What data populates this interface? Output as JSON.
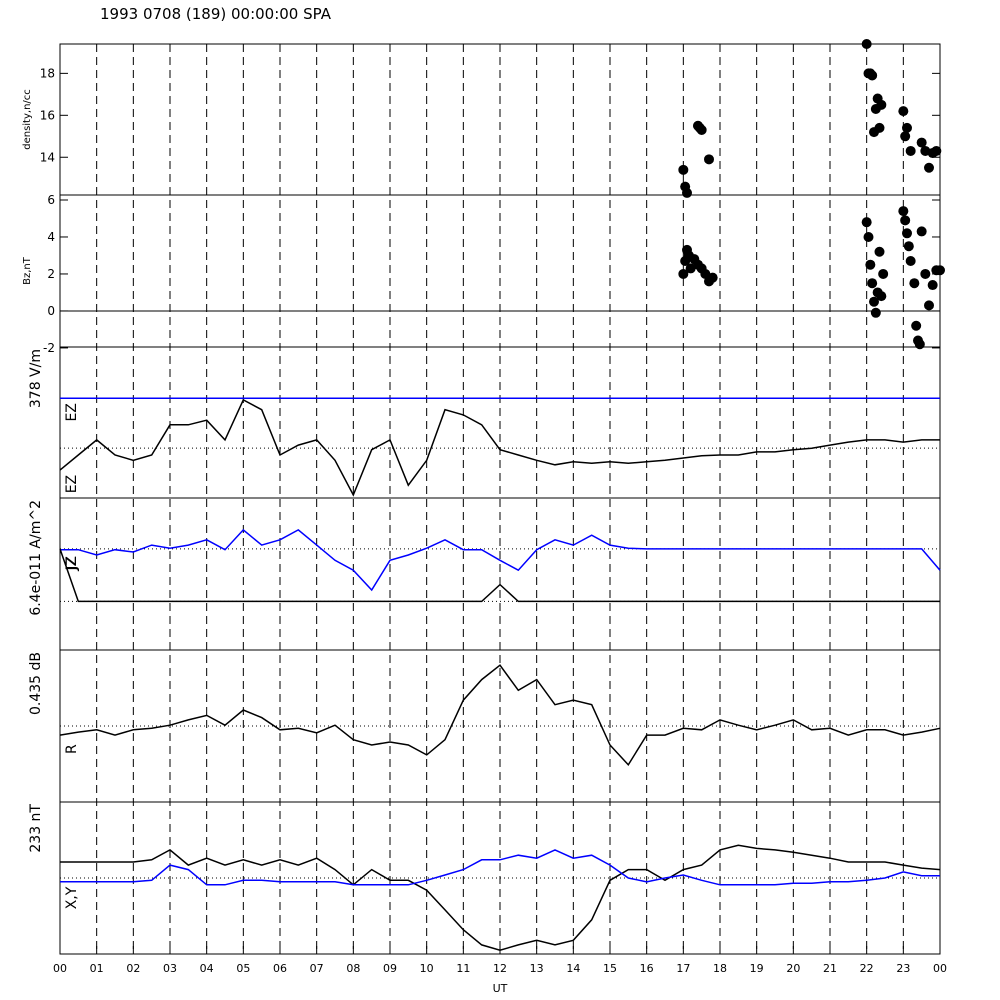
{
  "title": "1993 0708 (189) 00:00:00 SPA",
  "x_axis": {
    "label": "UT",
    "xlim": [
      0,
      24
    ],
    "xticks": [
      {
        "value": 0,
        "label": "00"
      },
      {
        "value": 1,
        "label": "01"
      },
      {
        "value": 2,
        "label": "02"
      },
      {
        "value": 3,
        "label": "03"
      },
      {
        "value": 4,
        "label": "04"
      },
      {
        "value": 5,
        "label": "05"
      },
      {
        "value": 6,
        "label": "06"
      },
      {
        "value": 7,
        "label": "07"
      },
      {
        "value": 8,
        "label": "08"
      },
      {
        "value": 9,
        "label": "09"
      },
      {
        "value": 10,
        "label": "10"
      },
      {
        "value": 11,
        "label": "11"
      },
      {
        "value": 12,
        "label": "12"
      },
      {
        "value": 13,
        "label": "13"
      },
      {
        "value": 14,
        "label": "14"
      },
      {
        "value": 15,
        "label": "15"
      },
      {
        "value": 16,
        "label": "16"
      },
      {
        "value": 17,
        "label": "17"
      },
      {
        "value": 18,
        "label": "18"
      },
      {
        "value": 19,
        "label": "19"
      },
      {
        "value": 20,
        "label": "20"
      },
      {
        "value": 21,
        "label": "21"
      },
      {
        "value": 22,
        "label": "22"
      },
      {
        "value": 23,
        "label": "23"
      },
      {
        "value": 24,
        "label": "00"
      }
    ]
  },
  "chart_data": [
    {
      "type": "scatter",
      "ylabel": "density,n/cc",
      "ylim": [
        12.2,
        19.4
      ],
      "yticks": [
        14,
        16,
        18
      ],
      "series": [
        {
          "color": "#000000",
          "x": [
            17.0,
            17.05,
            17.1,
            17.4,
            17.45,
            17.5,
            17.7,
            22.0,
            22.05,
            22.1,
            22.15,
            22.2,
            22.25,
            22.3,
            22.35,
            22.4,
            23.0,
            23.05,
            23.1,
            23.2,
            23.5,
            23.6,
            23.7,
            23.8,
            23.9
          ],
          "values": [
            13.4,
            12.6,
            12.3,
            15.5,
            15.4,
            15.3,
            13.9,
            19.4,
            18.0,
            18.0,
            17.9,
            15.2,
            16.3,
            16.8,
            15.4,
            16.5,
            16.2,
            15.0,
            15.4,
            14.3,
            14.7,
            14.3,
            13.5,
            14.2,
            14.3
          ]
        }
      ]
    },
    {
      "type": "scatter",
      "ylabel": "Bz,nT",
      "ylim": [
        -1.95,
        6.27
      ],
      "yticks": [
        -2,
        0,
        2,
        4,
        6
      ],
      "hlines": [
        0
      ],
      "series": [
        {
          "color": "#000000",
          "x": [
            17.0,
            17.05,
            17.1,
            17.15,
            17.2,
            17.3,
            17.4,
            17.5,
            17.6,
            17.7,
            17.8,
            22.0,
            22.05,
            22.1,
            22.15,
            22.2,
            22.25,
            22.3,
            22.35,
            22.4,
            22.45,
            23.0,
            23.05,
            23.1,
            23.15,
            23.2,
            23.3,
            23.35,
            23.4,
            23.45,
            23.5,
            23.6,
            23.7,
            23.8,
            23.9,
            24.0
          ],
          "values": [
            2.0,
            2.7,
            3.3,
            3.0,
            2.3,
            2.8,
            2.5,
            2.3,
            2.0,
            1.6,
            1.8,
            4.8,
            4.0,
            2.5,
            1.5,
            0.5,
            -0.1,
            1.0,
            3.2,
            0.8,
            2.0,
            5.4,
            4.9,
            4.2,
            3.5,
            2.7,
            1.5,
            -0.8,
            -1.6,
            -1.8,
            4.3,
            2.0,
            0.3,
            1.4,
            2.2,
            2.2
          ]
        }
      ]
    },
    {
      "type": "line",
      "scale_label": "378 V/m",
      "ylim": [
        -1,
        1
      ],
      "hlines": [
        0.32,
        -0.34
      ],
      "x": [
        0,
        0.5,
        1,
        1.5,
        2,
        2.5,
        3,
        3.5,
        4,
        4.5,
        5,
        5.5,
        6,
        6.5,
        7,
        7.5,
        8,
        8.5,
        9,
        9.5,
        10,
        10.5,
        11,
        11.5,
        12,
        12.5,
        13,
        13.5,
        14,
        14.5,
        15,
        15.5,
        16,
        16.5,
        17,
        17.5,
        18,
        18.5,
        19,
        19.5,
        20,
        20.5,
        21,
        21.5,
        22,
        22.5,
        23,
        23.5,
        24
      ],
      "series": [
        {
          "name": "EZ",
          "color": "#0000ff",
          "values": [
            0.32,
            0.32,
            0.32,
            0.32,
            0.32,
            0.32,
            0.32,
            0.32,
            0.32,
            0.32,
            0.32,
            0.32,
            0.32,
            0.32,
            0.32,
            0.32,
            0.32,
            0.32,
            0.32,
            0.32,
            0.32,
            0.32,
            0.32,
            0.32,
            0.32,
            0.32,
            0.32,
            0.32,
            0.32,
            0.32,
            0.32,
            0.32,
            0.32,
            0.32,
            0.32,
            0.32,
            0.32,
            0.32,
            0.32,
            0.32,
            0.32,
            0.32,
            0.32,
            0.32,
            0.32,
            0.32,
            0.32,
            0.32,
            0.32
          ]
        },
        {
          "name": "EZ",
          "color": "#000000",
          "values": [
            -0.63,
            -0.43,
            -0.23,
            -0.43,
            -0.5,
            -0.43,
            -0.03,
            -0.03,
            0.03,
            -0.23,
            0.3,
            0.17,
            -0.43,
            -0.3,
            -0.23,
            -0.5,
            -0.96,
            -0.36,
            -0.23,
            -0.83,
            -0.5,
            0.17,
            0.1,
            -0.03,
            -0.36,
            -0.43,
            -0.5,
            -0.56,
            -0.52,
            -0.54,
            -0.52,
            -0.54,
            -0.52,
            -0.5,
            -0.47,
            -0.44,
            -0.43,
            -0.43,
            -0.39,
            -0.39,
            -0.36,
            -0.34,
            -0.3,
            -0.26,
            -0.23,
            -0.23,
            -0.26,
            -0.23,
            -0.23
          ]
        }
      ]
    },
    {
      "type": "line",
      "scale_label": "6.4e-011 A/m^2",
      "ylim": [
        -1,
        1
      ],
      "hlines": [
        0.33,
        -0.36
      ],
      "x": [
        0,
        0.5,
        1,
        1.5,
        2,
        2.5,
        3,
        3.5,
        4,
        4.5,
        5,
        5.5,
        6,
        6.5,
        7,
        7.5,
        8,
        8.5,
        9,
        9.5,
        10,
        10.5,
        11,
        11.5,
        12,
        12.5,
        13,
        13.5,
        14,
        14.5,
        15,
        15.5,
        16,
        16.5,
        17,
        17.5,
        18,
        18.5,
        19,
        19.5,
        20,
        20.5,
        21,
        21.5,
        22,
        22.5,
        23,
        23.5,
        24
      ],
      "series": [
        {
          "name": "JZ",
          "color": "#0000ff",
          "values": [
            0.32,
            0.32,
            0.25,
            0.32,
            0.29,
            0.38,
            0.34,
            0.38,
            0.45,
            0.32,
            0.58,
            0.38,
            0.45,
            0.58,
            0.38,
            0.18,
            0.05,
            -0.21,
            0.18,
            0.25,
            0.34,
            0.45,
            0.32,
            0.32,
            0.18,
            0.05,
            0.32,
            0.45,
            0.38,
            0.51,
            0.38,
            0.34,
            0.33,
            0.33,
            0.33,
            0.33,
            0.33,
            0.33,
            0.33,
            0.33,
            0.33,
            0.33,
            0.33,
            0.33,
            0.33,
            0.33,
            0.33,
            0.33,
            0.05
          ]
        },
        {
          "name": "JZ",
          "color": "#000000",
          "values": [
            0.33,
            -0.36,
            -0.36,
            -0.36,
            -0.36,
            -0.36,
            -0.36,
            -0.36,
            -0.36,
            -0.36,
            -0.36,
            -0.36,
            -0.36,
            -0.36,
            -0.36,
            -0.36,
            -0.36,
            -0.36,
            -0.36,
            -0.36,
            -0.36,
            -0.36,
            -0.36,
            -0.36,
            -0.14,
            -0.36,
            -0.36,
            -0.36,
            -0.36,
            -0.36,
            -0.36,
            -0.36,
            -0.36,
            -0.36,
            -0.36,
            -0.36,
            -0.36,
            -0.36,
            -0.36,
            -0.36,
            -0.36,
            -0.36,
            -0.36,
            -0.36,
            -0.36,
            -0.36,
            -0.36,
            -0.36,
            -0.36
          ]
        }
      ]
    },
    {
      "type": "line",
      "scale_label": "0.435 dB",
      "ylim": [
        -1,
        1
      ],
      "hlines": [
        0
      ],
      "x": [
        0,
        0.5,
        1,
        1.5,
        2,
        2.5,
        3,
        3.5,
        4,
        4.5,
        5,
        5.5,
        6,
        6.5,
        7,
        7.5,
        8,
        8.5,
        9,
        9.5,
        10,
        10.5,
        11,
        11.5,
        12,
        12.5,
        13,
        13.5,
        14,
        14.5,
        15,
        15.5,
        16,
        16.5,
        17,
        17.5,
        18,
        18.5,
        19,
        19.5,
        20,
        20.5,
        21,
        21.5,
        22,
        22.5,
        23,
        23.5,
        24
      ],
      "series": [
        {
          "name": "R",
          "color": "#000000",
          "values": [
            -0.12,
            -0.08,
            -0.05,
            -0.12,
            -0.05,
            -0.03,
            0.01,
            0.08,
            0.14,
            0.01,
            0.21,
            0.11,
            -0.05,
            -0.03,
            -0.09,
            0.01,
            -0.18,
            -0.25,
            -0.21,
            -0.25,
            -0.38,
            -0.18,
            0.34,
            0.61,
            0.8,
            0.47,
            0.61,
            0.28,
            0.34,
            0.28,
            -0.25,
            -0.51,
            -0.12,
            -0.12,
            -0.03,
            -0.05,
            0.08,
            0.01,
            -0.05,
            0.01,
            0.08,
            -0.05,
            -0.03,
            -0.12,
            -0.05,
            -0.05,
            -0.12,
            -0.08,
            -0.03
          ]
        }
      ]
    },
    {
      "type": "line",
      "scale_label": "233 nT",
      "label": "X,Y",
      "ylim": [
        -1,
        1
      ],
      "hlines": [
        0
      ],
      "x": [
        0,
        0.5,
        1,
        1.5,
        2,
        2.5,
        3,
        3.5,
        4,
        4.5,
        5,
        5.5,
        6,
        6.5,
        7,
        7.5,
        8,
        8.5,
        9,
        9.5,
        10,
        10.5,
        11,
        11.5,
        12,
        12.5,
        13,
        13.5,
        14,
        14.5,
        15,
        15.5,
        16,
        16.5,
        17,
        17.5,
        18,
        18.5,
        19,
        19.5,
        20,
        20.5,
        21,
        21.5,
        22,
        22.5,
        23,
        23.5,
        24
      ],
      "series": [
        {
          "color": "#000000",
          "values": [
            0.21,
            0.21,
            0.21,
            0.21,
            0.21,
            0.24,
            0.37,
            0.17,
            0.26,
            0.17,
            0.24,
            0.17,
            0.24,
            0.17,
            0.26,
            0.11,
            -0.09,
            0.11,
            -0.03,
            -0.03,
            -0.16,
            -0.42,
            -0.68,
            -0.88,
            -0.95,
            -0.88,
            -0.82,
            -0.88,
            -0.82,
            -0.55,
            -0.03,
            0.11,
            0.11,
            -0.03,
            0.11,
            0.17,
            0.37,
            0.43,
            0.39,
            0.37,
            0.34,
            0.3,
            0.26,
            0.21,
            0.21,
            0.21,
            0.17,
            0.13,
            0.11
          ]
        },
        {
          "color": "#0000ff",
          "values": [
            -0.05,
            -0.05,
            -0.05,
            -0.05,
            -0.05,
            -0.03,
            0.17,
            0.11,
            -0.09,
            -0.09,
            -0.03,
            -0.03,
            -0.05,
            -0.05,
            -0.05,
            -0.05,
            -0.09,
            -0.09,
            -0.09,
            -0.09,
            -0.03,
            0.04,
            0.11,
            0.24,
            0.24,
            0.3,
            0.26,
            0.37,
            0.26,
            0.3,
            0.17,
            0.0,
            -0.05,
            0.0,
            0.04,
            -0.03,
            -0.09,
            -0.09,
            -0.09,
            -0.09,
            -0.07,
            -0.07,
            -0.05,
            -0.05,
            -0.03,
            0.0,
            0.08,
            0.03,
            0.03
          ]
        }
      ]
    }
  ]
}
